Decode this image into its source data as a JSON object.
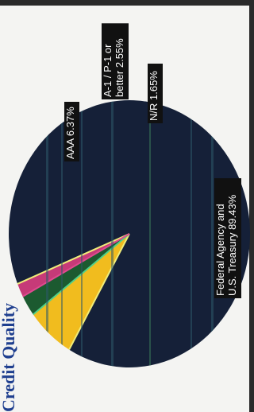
{
  "page": {
    "title": "Credit Quality"
  },
  "chart_data": {
    "type": "pie",
    "title": "Credit Quality",
    "slices": [
      {
        "label": "Federal Agency and U.S. Treasury",
        "value": 89.43,
        "display": [
          "Federal Agency and",
          "U.S. Treasury  89.43%"
        ],
        "color": "#152038"
      },
      {
        "label": "AAA",
        "value": 6.37,
        "display": [
          "AAA  6.37%"
        ],
        "color": "#f1bc1e"
      },
      {
        "label": "A-1 / P-1 or better",
        "value": 2.55,
        "display": [
          "A-1 / P-1 or",
          "better  2.55%"
        ],
        "color": "#1c5a30"
      },
      {
        "label": "N/R",
        "value": 1.65,
        "display": [
          "N/R  1.65%"
        ],
        "color": "#c63a78"
      }
    ]
  }
}
